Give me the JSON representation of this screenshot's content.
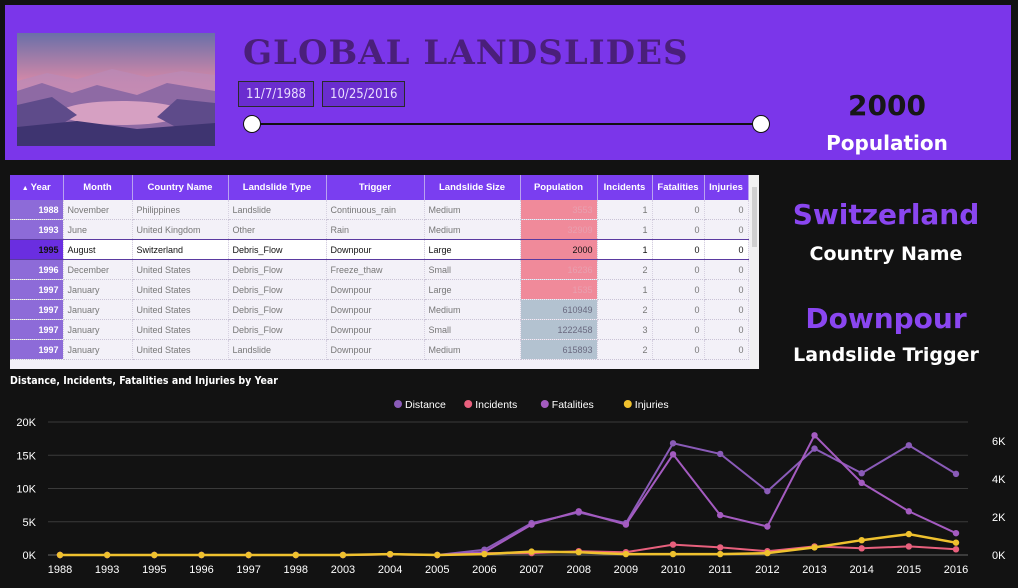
{
  "header": {
    "title": "GLOBAL LANDSLIDES",
    "start_date": "11/7/1988",
    "end_date": "10/25/2016",
    "slider": {
      "start_fraction": 0,
      "end_fraction": 1
    },
    "kpi_value": "2000",
    "kpi_label": "Population"
  },
  "table": {
    "columns": [
      "Year",
      "Month",
      "Country Name",
      "Landslide Type",
      "Trigger",
      "Landslide Size",
      "Population",
      "Incidents",
      "Fatalities",
      "Injuries"
    ],
    "rows": [
      {
        "year": "1988",
        "month": "November",
        "country": "Philippines",
        "type": "Landslide",
        "trigger": "Continuous_rain",
        "size": "Medium",
        "population": "3553",
        "incidents": "1",
        "fatalities": "0",
        "injuries": "0",
        "pop_color": "#f08a9a"
      },
      {
        "year": "1993",
        "month": "June",
        "country": "United Kingdom",
        "type": "Other",
        "trigger": "Rain",
        "size": "Medium",
        "population": "32909",
        "incidents": "1",
        "fatalities": "0",
        "injuries": "0",
        "pop_color": "#f08a9a"
      },
      {
        "year": "1995",
        "month": "August",
        "country": "Switzerland",
        "type": "Debris_Flow",
        "trigger": "Downpour",
        "size": "Large",
        "population": "2000",
        "incidents": "1",
        "fatalities": "0",
        "injuries": "0",
        "pop_color": "#f08a9a",
        "selected": true
      },
      {
        "year": "1996",
        "month": "December",
        "country": "United States",
        "type": "Debris_Flow",
        "trigger": "Freeze_thaw",
        "size": "Small",
        "population": "16236",
        "incidents": "2",
        "fatalities": "0",
        "injuries": "0",
        "pop_color": "#f08a9a"
      },
      {
        "year": "1997",
        "month": "January",
        "country": "United States",
        "type": "Debris_Flow",
        "trigger": "Downpour",
        "size": "Large",
        "population": "1535",
        "incidents": "1",
        "fatalities": "0",
        "injuries": "0",
        "pop_color": "#f08a9a"
      },
      {
        "year": "1997",
        "month": "January",
        "country": "United States",
        "type": "Debris_Flow",
        "trigger": "Downpour",
        "size": "Medium",
        "population": "610949",
        "incidents": "2",
        "fatalities": "0",
        "injuries": "0",
        "pop_color": "#b3c2d0"
      },
      {
        "year": "1997",
        "month": "January",
        "country": "United States",
        "type": "Debris_Flow",
        "trigger": "Downpour",
        "size": "Small",
        "population": "1222458",
        "incidents": "3",
        "fatalities": "0",
        "injuries": "0",
        "pop_color": "#b3c2d0"
      },
      {
        "year": "1997",
        "month": "January",
        "country": "United States",
        "type": "Landslide",
        "trigger": "Downpour",
        "size": "Medium",
        "population": "615893",
        "incidents": "2",
        "fatalities": "0",
        "injuries": "0",
        "pop_color": "#b3c2d0"
      }
    ]
  },
  "cards": {
    "country_value": "Switzerland",
    "country_label": "Country Name",
    "trigger_value": "Downpour",
    "trigger_label": "Landslide Trigger"
  },
  "colors": {
    "header_bg": "#7b36ea",
    "distance": "#8a5bb8",
    "incidents": "#e8607d",
    "fatalities": "#a45bc0",
    "injuries": "#efc12e"
  },
  "chart_data": {
    "type": "line",
    "title": "Distance, Incidents, Fatalities and Injuries by Year",
    "legend_position": "top-center",
    "categories": [
      "1988",
      "1993",
      "1995",
      "1996",
      "1997",
      "1998",
      "2003",
      "2004",
      "2005",
      "2006",
      "2007",
      "2008",
      "2009",
      "2010",
      "2011",
      "2012",
      "2013",
      "2014",
      "2015",
      "2016"
    ],
    "y_left": {
      "ticks": [
        "0K",
        "5K",
        "10K",
        "15K",
        "20K"
      ],
      "range": [
        0,
        20000
      ]
    },
    "y_right": {
      "ticks": [
        "0K",
        "2K",
        "4K",
        "6K"
      ],
      "range": [
        0,
        7000
      ]
    },
    "series": [
      {
        "name": "Distance",
        "axis": "left",
        "values": [
          0,
          0,
          0,
          0,
          0,
          0,
          0,
          100,
          0,
          800,
          4800,
          6400,
          4800,
          16800,
          15200,
          9600,
          16000,
          12300,
          16500,
          12200
        ]
      },
      {
        "name": "Incidents",
        "axis": "right",
        "values": [
          0,
          0,
          0,
          0,
          0,
          0,
          0,
          30,
          0,
          100,
          100,
          200,
          150,
          550,
          400,
          200,
          450,
          350,
          450,
          300
        ]
      },
      {
        "name": "Fatalities",
        "axis": "right",
        "values": [
          0,
          0,
          0,
          0,
          0,
          0,
          0,
          30,
          0,
          150,
          1600,
          2300,
          1600,
          5300,
          2100,
          1500,
          6300,
          3800,
          2300,
          1150
        ]
      },
      {
        "name": "Injuries",
        "axis": "right",
        "values": [
          0,
          0,
          0,
          0,
          0,
          0,
          0,
          50,
          0,
          50,
          180,
          150,
          50,
          50,
          50,
          100,
          400,
          780,
          1100,
          650
        ]
      }
    ]
  }
}
